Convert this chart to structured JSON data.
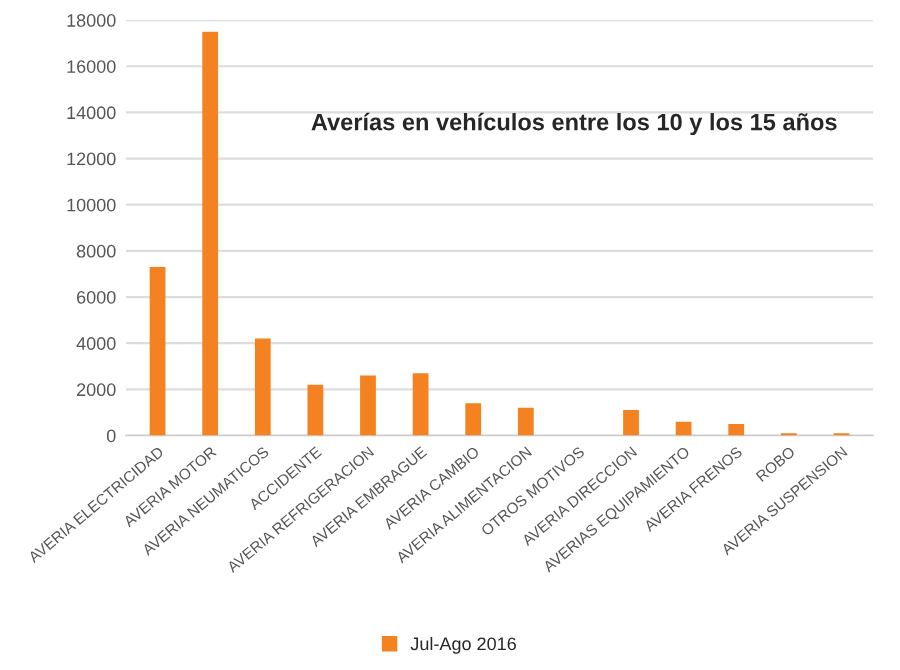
{
  "chart_data": {
    "type": "bar",
    "title": "Averías en vehículos entre los 10 y los 15 años",
    "categories": [
      "AVERIA ELECTRICIDAD",
      "AVERIA MOTOR",
      "AVERIA NEUMATICOS",
      "ACCIDENTE",
      "AVERIA REFRIGERACION",
      "AVERIA EMBRAGUE",
      "AVERIA CAMBIO",
      "AVERIA ALIMENTACION",
      "OTROS MOTIVOS",
      "AVERIA DIRECCION",
      "AVERIAS EQUIPAMIENTO",
      "AVERIA FRENOS",
      "ROBO",
      "AVERIA SUSPENSION"
    ],
    "series": [
      {
        "name": "Jul-Ago 2016",
        "color": "#f58220",
        "values": [
          7300,
          17500,
          4200,
          2200,
          2600,
          2700,
          1400,
          1200,
          null,
          1100,
          600,
          500,
          100,
          100
        ]
      }
    ],
    "ylim": [
      0,
      18000
    ],
    "yticks": [
      0,
      2000,
      4000,
      6000,
      8000,
      10000,
      12000,
      14000,
      16000,
      18000
    ],
    "grid": "y",
    "legend": "bottom"
  }
}
